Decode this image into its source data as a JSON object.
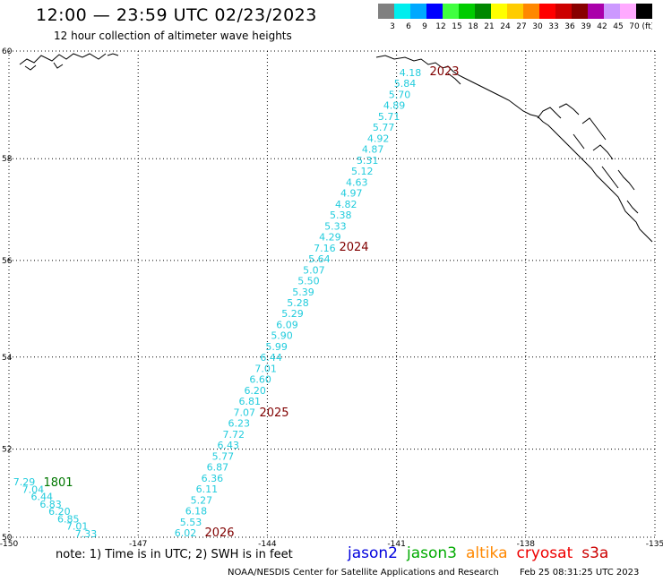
{
  "header": {
    "title": "12:00 — 23:59 UTC 02/23/2023",
    "subtitle": "12 hour collection of altimeter wave heights"
  },
  "legend": {
    "unit": "(ft)",
    "bins": [
      {
        "label": "3",
        "color": "#808080"
      },
      {
        "label": "6",
        "color": "#00eeee"
      },
      {
        "label": "9",
        "color": "#00a8ff"
      },
      {
        "label": "12",
        "color": "#0000ff"
      },
      {
        "label": "15",
        "color": "#40ff40"
      },
      {
        "label": "18",
        "color": "#00cc00"
      },
      {
        "label": "21",
        "color": "#008800"
      },
      {
        "label": "24",
        "color": "#ffff00"
      },
      {
        "label": "27",
        "color": "#ffcc00"
      },
      {
        "label": "30",
        "color": "#ff8800"
      },
      {
        "label": "33",
        "color": "#ff0000"
      },
      {
        "label": "36",
        "color": "#cc0000"
      },
      {
        "label": "39",
        "color": "#880000"
      },
      {
        "label": "42",
        "color": "#aa00aa"
      },
      {
        "label": "45",
        "color": "#cc99ff"
      },
      {
        "label": "70",
        "color": "#ffaaff"
      },
      {
        "label": "",
        "color": "#000000"
      }
    ]
  },
  "map": {
    "lon_range": [
      -150,
      -135
    ],
    "lat_range": [
      50,
      60
    ],
    "lon_ticks": [
      "-150",
      "-147",
      "-144",
      "-141",
      "-138",
      "-135"
    ],
    "lat_ticks": [
      "60",
      "58",
      "56",
      "54",
      "52",
      "50"
    ],
    "colors": {
      "track": "#22ccdd",
      "pass_dark": "#800000",
      "pass_green": "#007700"
    }
  },
  "tracks": [
    {
      "pass_labels": [
        "2023",
        "2024",
        "2025",
        "2026"
      ],
      "values": [
        "4.18",
        "5.84",
        "5.70",
        "4.89",
        "5.71",
        "5.77",
        "4.92",
        "4.87",
        "5.31",
        "5.12",
        "4.63",
        "4.97",
        "4.82",
        "5.38",
        "5.33",
        "4.29",
        "7.16",
        "5.64",
        "5.07",
        "5.50",
        "5.39",
        "5.28",
        "5.29",
        "6.09",
        "5.90",
        "5.99",
        "6.44",
        "7.01",
        "6.60",
        "6.20",
        "6.81",
        "7.07",
        "6.23",
        "7.72",
        "6.43",
        "5.77",
        "6.87",
        "6.36",
        "6.11",
        "5.27",
        "6.18",
        "5.53",
        "6.02"
      ]
    },
    {
      "pass_labels": [
        "1801"
      ],
      "values": [
        "7.29",
        "7.04",
        "6.44",
        "6.83",
        "6.20",
        "6.85",
        "7.01",
        "7.33"
      ]
    }
  ],
  "footer": {
    "note": "note: 1) Time is in UTC; 2) SWH is in feet",
    "missions": [
      {
        "name": "jason2",
        "color": "#0000dd"
      },
      {
        "name": "jason3",
        "color": "#00aa00"
      },
      {
        "name": "altika",
        "color": "#ff8800"
      },
      {
        "name": "cryosat",
        "color": "#ee0000"
      },
      {
        "name": "s3a",
        "color": "#cc0000"
      }
    ],
    "credit": "NOAA/NESDIS Center for Satellite Applications and Research",
    "timestamp": "Feb 25 08:31:25 UTC 2023"
  }
}
